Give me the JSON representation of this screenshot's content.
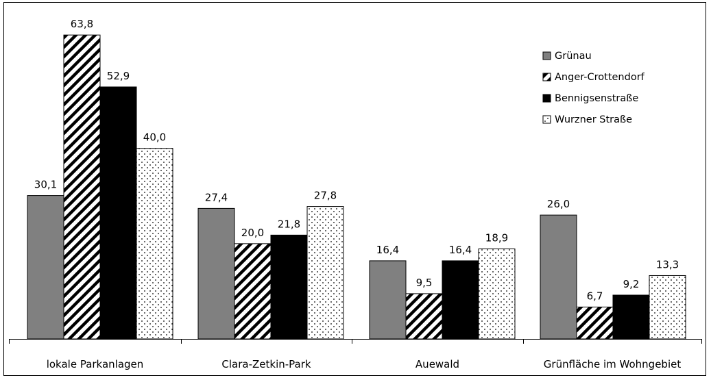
{
  "colors": {
    "grunau": "#808080",
    "anger": "#000000",
    "bennigsen": "#000000",
    "wurzner": "#ffffff",
    "frame": "#000000"
  },
  "chart_data": {
    "type": "bar",
    "title": "",
    "xlabel": "",
    "ylabel": "",
    "ylim": [
      0,
      70
    ],
    "grid": false,
    "legend_position": "top-right",
    "categories": [
      "lokale Parkanlagen",
      "Clara-Zetkin-Park",
      "Auewald",
      "Grünfläche im Wohngebiet"
    ],
    "series": [
      {
        "name": "Grünau",
        "fill": "solid-gray",
        "values": [
          30.1,
          27.4,
          16.4,
          26.0
        ],
        "labels": [
          "30,1",
          "27,4",
          "16,4",
          "26,0"
        ]
      },
      {
        "name": "Anger-Crottendorf",
        "fill": "diagonal-hatch",
        "values": [
          63.8,
          20.0,
          9.5,
          6.7
        ],
        "labels": [
          "63,8",
          "20,0",
          "9,5",
          "6,7"
        ]
      },
      {
        "name": "Bennigsenstraße",
        "fill": "solid-black",
        "values": [
          52.9,
          21.8,
          16.4,
          9.2
        ],
        "labels": [
          "52,9",
          "21,8",
          "16,4",
          "9,2"
        ]
      },
      {
        "name": "Wurzner Straße",
        "fill": "dotted",
        "values": [
          40.0,
          27.8,
          18.9,
          13.3
        ],
        "labels": [
          "40,0",
          "27,8",
          "18,9",
          "13,3"
        ]
      }
    ]
  }
}
